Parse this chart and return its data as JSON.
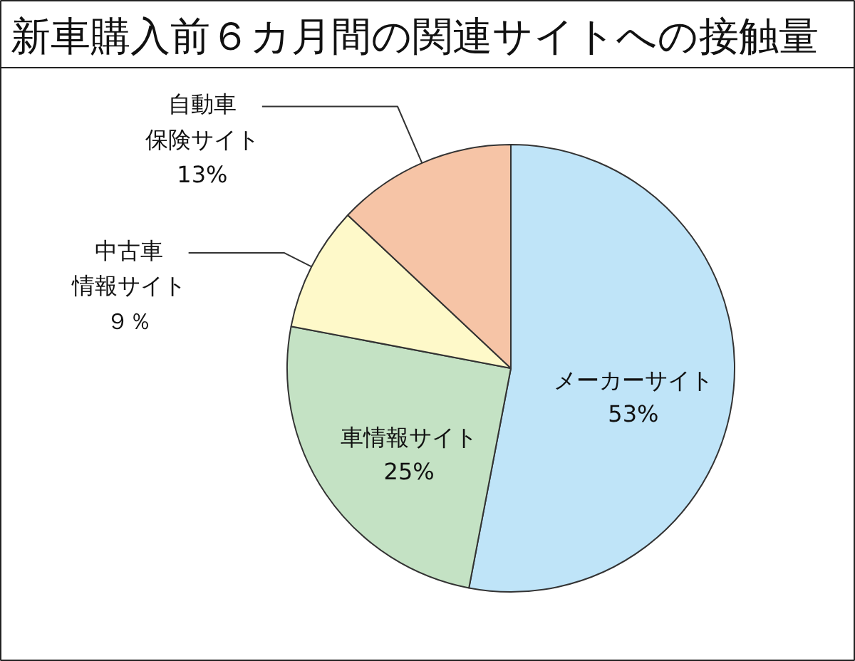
{
  "chart_data": {
    "type": "pie",
    "title": "新車購入前６カ月間の関連サイトへの接触量",
    "categories": [
      "メーカーサイト",
      "車情報サイト",
      "中古車情報サイト",
      "自動車保険サイト"
    ],
    "values": [
      53,
      25,
      9,
      13
    ],
    "colors": [
      "#bfe4f8",
      "#c4e2c4",
      "#fef9c9",
      "#f6c4a6"
    ],
    "value_labels": [
      "53%",
      "25%",
      "９％",
      "13%"
    ]
  }
}
